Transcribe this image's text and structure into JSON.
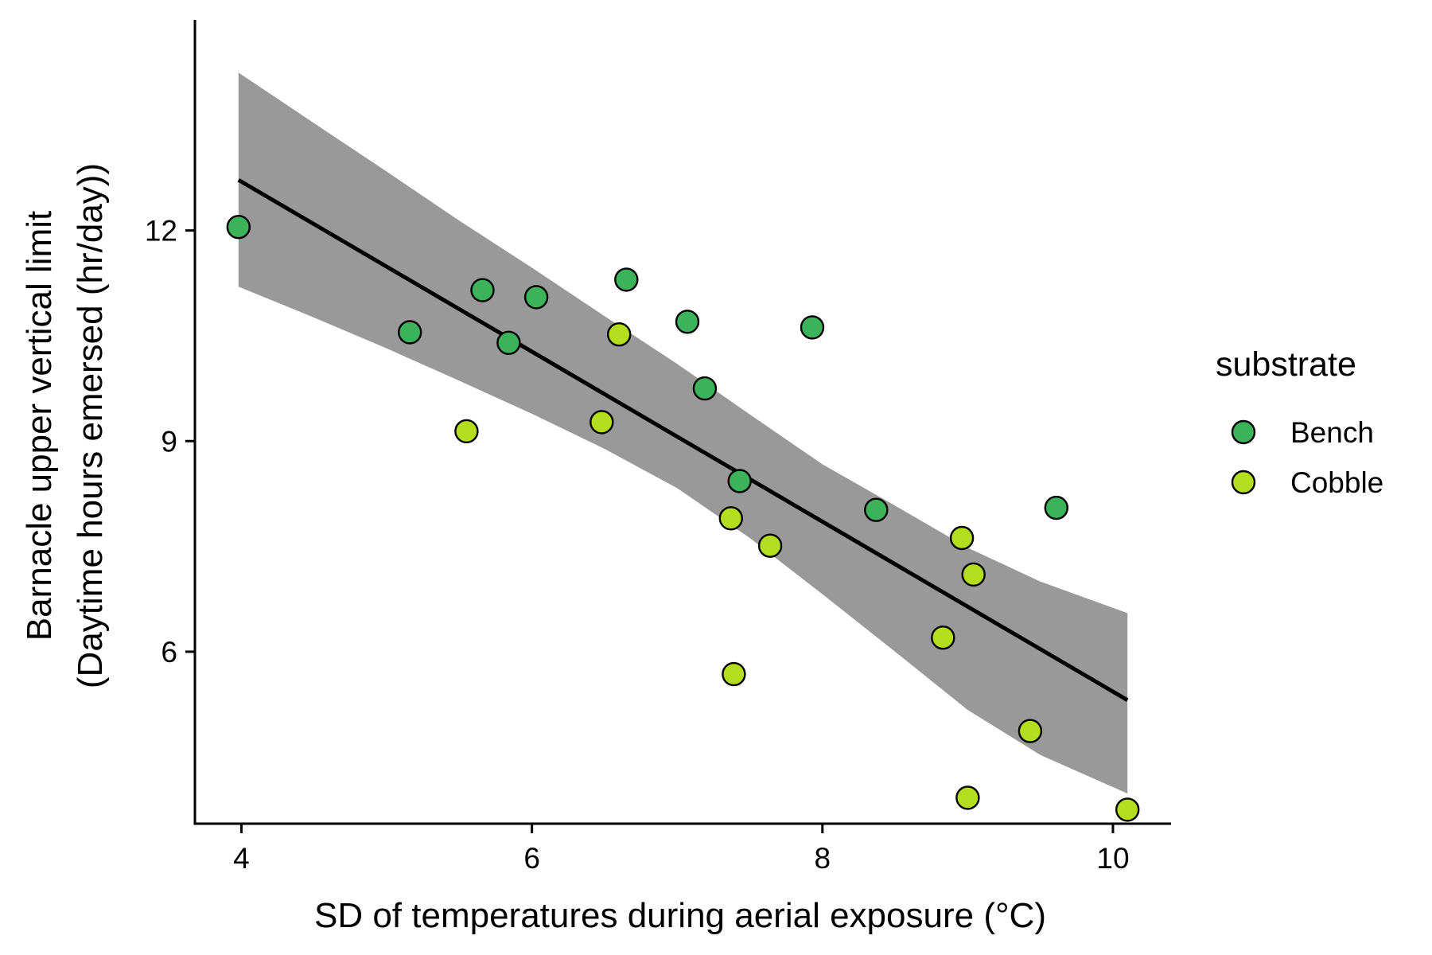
{
  "chart_data": {
    "type": "scatter",
    "title": "",
    "xlabel": "SD of temperatures during aerial exposure (°C)",
    "ylabel_lines": [
      "Barnacle upper vertical limit",
      "(Daytime hours emersed (hr/day))"
    ],
    "xlim": [
      3.68,
      10.4
    ],
    "ylim": [
      3.55,
      15.0
    ],
    "x_ticks": [
      4,
      6,
      8,
      10
    ],
    "x_tick_labels": [
      "4",
      "6",
      "8",
      "10"
    ],
    "y_ticks": [
      6,
      9,
      12
    ],
    "y_tick_labels": [
      "6",
      "9",
      "12"
    ],
    "grid": false,
    "legend": {
      "title": "substrate",
      "placement": "right",
      "entries": [
        "Bench",
        "Cobble"
      ]
    },
    "colors": {
      "Bench": "#3bb35a",
      "Cobble": "#b4dd1e",
      "ribbon": "#999999",
      "line": "#000000",
      "point_outline": "#000000"
    },
    "series": [
      {
        "name": "Bench",
        "points": [
          [
            3.98,
            12.05
          ],
          [
            5.16,
            10.55
          ],
          [
            5.66,
            11.15
          ],
          [
            5.84,
            10.4
          ],
          [
            6.03,
            11.05
          ],
          [
            6.65,
            11.3
          ],
          [
            7.07,
            10.7
          ],
          [
            7.19,
            9.75
          ],
          [
            7.43,
            8.43
          ],
          [
            7.93,
            10.62
          ],
          [
            8.37,
            8.02
          ],
          [
            9.61,
            8.05
          ]
        ]
      },
      {
        "name": "Cobble",
        "points": [
          [
            5.55,
            9.14
          ],
          [
            6.48,
            9.27
          ],
          [
            6.6,
            10.52
          ],
          [
            7.37,
            7.9
          ],
          [
            7.39,
            5.68
          ],
          [
            7.64,
            7.51
          ],
          [
            8.83,
            6.2
          ],
          [
            8.96,
            7.62
          ],
          [
            9.0,
            3.92
          ],
          [
            9.04,
            7.1
          ],
          [
            9.43,
            4.87
          ],
          [
            10.1,
            3.75
          ]
        ]
      }
    ],
    "fit_line": {
      "x": [
        3.98,
        10.1
      ],
      "y": [
        12.72,
        5.31
      ]
    },
    "confidence_band": {
      "x": [
        3.98,
        4.5,
        5.0,
        5.5,
        6.0,
        6.5,
        7.0,
        7.5,
        8.0,
        8.5,
        9.0,
        9.5,
        10.1
      ],
      "lower": [
        11.2,
        10.76,
        10.32,
        9.86,
        9.39,
        8.89,
        8.33,
        7.62,
        6.82,
        6.0,
        5.17,
        4.53,
        3.98
      ],
      "upper": [
        14.25,
        13.53,
        12.84,
        12.14,
        11.47,
        10.78,
        10.1,
        9.38,
        8.67,
        8.08,
        7.48,
        7.0,
        6.55
      ]
    }
  }
}
